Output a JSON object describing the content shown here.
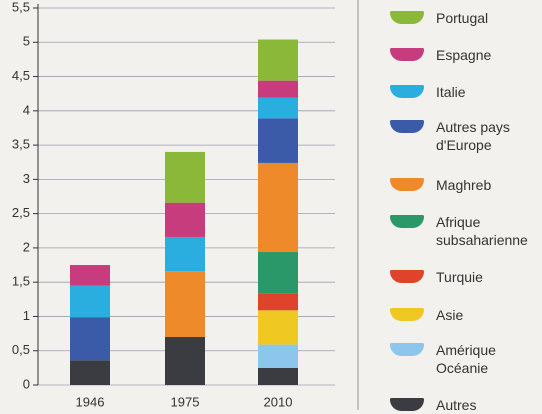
{
  "chart_data": {
    "type": "stacked-bar",
    "categories": [
      "1946",
      "1975",
      "2010"
    ],
    "series": [
      {
        "name": "Autres",
        "color": "#3b3b42",
        "values": [
          0.36,
          0.7,
          0.25
        ]
      },
      {
        "name": "Amérique Océanie",
        "color": "#8cc6ec",
        "values": [
          0,
          0,
          0.34
        ]
      },
      {
        "name": "Asie",
        "color": "#f0c822",
        "values": [
          0,
          0,
          0.5
        ]
      },
      {
        "name": "Turquie",
        "color": "#e0432c",
        "values": [
          0,
          0,
          0.25
        ]
      },
      {
        "name": "Afrique subsaharienne",
        "color": "#2a9868",
        "values": [
          0,
          0,
          0.6
        ]
      },
      {
        "name": "Maghreb",
        "color": "#ee8a2a",
        "values": [
          0,
          0.96,
          1.3
        ]
      },
      {
        "name": "Autres pays d'Europe",
        "color": "#3b5ba8",
        "values": [
          0.63,
          0,
          0.65
        ]
      },
      {
        "name": "Italie",
        "color": "#2aaee0",
        "values": [
          0.46,
          0.5,
          0.3
        ]
      },
      {
        "name": "Espagne",
        "color": "#c63c7c",
        "values": [
          0.3,
          0.5,
          0.25
        ]
      },
      {
        "name": "Portugal",
        "color": "#8cb83a",
        "values": [
          0,
          0.74,
          0.6
        ]
      }
    ],
    "ylim": [
      0,
      5.5
    ],
    "yticks": [
      0,
      {
        "value": 0.5,
        "label": "0,5"
      },
      1,
      {
        "value": 1.5,
        "label": "1,5"
      },
      2,
      {
        "value": 2.5,
        "label": "2,5"
      },
      3,
      {
        "value": 3.5,
        "label": "3,5"
      },
      4,
      {
        "value": 4.5,
        "label": "4,5"
      },
      5,
      {
        "value": 5.5,
        "label": "5,5"
      }
    ],
    "grid": true
  }
}
